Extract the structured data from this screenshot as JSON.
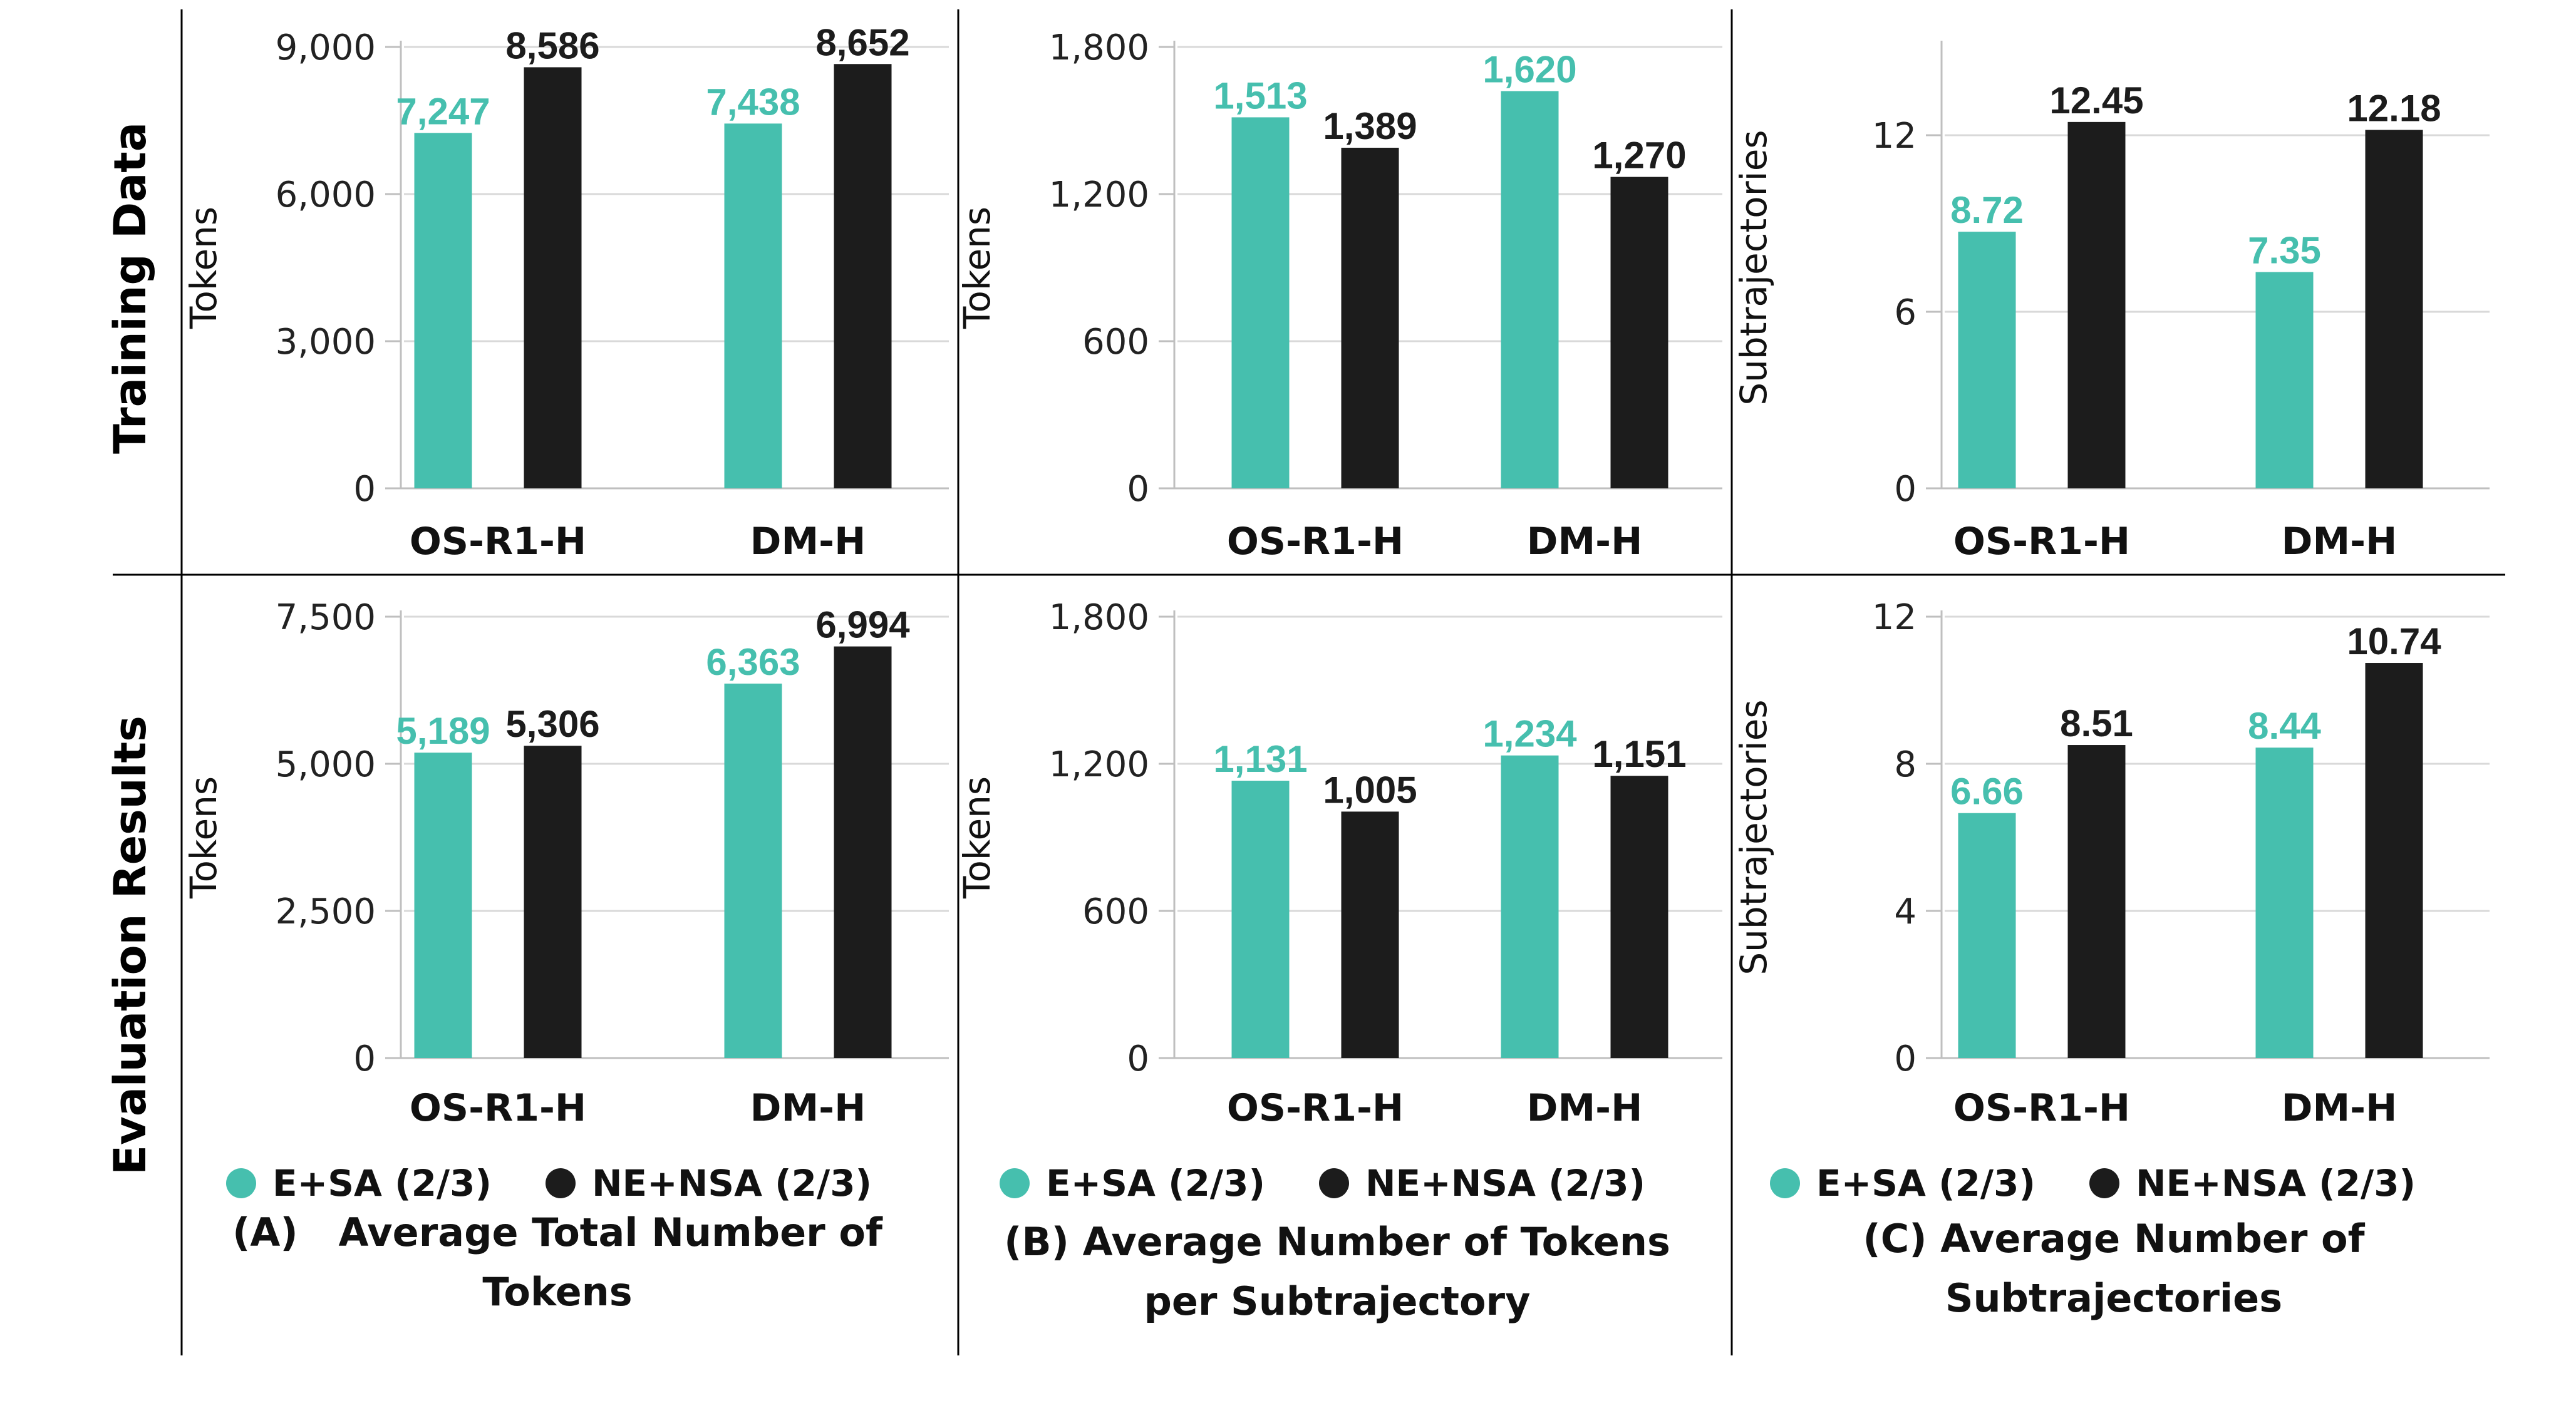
{
  "colors": {
    "esa": "#46bfae",
    "nensa": "#1c1c1c",
    "grid": "#d9d9d9",
    "axis": "#bfbfbf",
    "frame": "#000000"
  },
  "row_labels": [
    "Training Data",
    "Evaluation Results"
  ],
  "legend": {
    "esa": "E+SA (2/3)",
    "nensa": "NE+NSA (2/3)"
  },
  "captions": [
    [
      "(A)   Average Total Number of",
      "Tokens"
    ],
    [
      "(B) Average Number of Tokens",
      "per Subtrajectory"
    ],
    [
      "(C) Average Number of",
      "Subtrajectories"
    ]
  ],
  "chart_data": [
    {
      "type": "bar",
      "row": 0,
      "col": 0,
      "ylabel": "Tokens",
      "ylim": [
        0,
        9000
      ],
      "ticks": [
        "0",
        "3,000",
        "6,000",
        "9,000"
      ],
      "tick_values": [
        0,
        3000,
        6000,
        9000
      ],
      "categories": [
        "OS-R1-H",
        "DM-H"
      ],
      "series": [
        {
          "name": "E+SA (2/3)",
          "values": [
            7247,
            7438
          ],
          "labels": [
            "7,247",
            "7,438"
          ]
        },
        {
          "name": "NE+NSA (2/3)",
          "values": [
            8586,
            8652
          ],
          "labels": [
            "8,586",
            "8,652"
          ]
        }
      ]
    },
    {
      "type": "bar",
      "row": 0,
      "col": 1,
      "ylabel": "Tokens",
      "ylim": [
        0,
        1800
      ],
      "ticks": [
        "0",
        "600",
        "1,200",
        "1,800"
      ],
      "tick_values": [
        0,
        600,
        1200,
        1800
      ],
      "categories": [
        "OS-R1-H",
        "DM-H"
      ],
      "series": [
        {
          "name": "E+SA (2/3)",
          "values": [
            1513,
            1620
          ],
          "labels": [
            "1,513",
            "1,620"
          ]
        },
        {
          "name": "NE+NSA (2/3)",
          "values": [
            1389,
            1270
          ],
          "labels": [
            "1,389",
            "1,270"
          ]
        }
      ]
    },
    {
      "type": "bar",
      "row": 0,
      "col": 2,
      "ylabel": "Subtrajectories",
      "ylim": [
        0,
        15
      ],
      "ticks": [
        "0",
        "6",
        "12"
      ],
      "tick_values": [
        0,
        6,
        12
      ],
      "categories": [
        "OS-R1-H",
        "DM-H"
      ],
      "series": [
        {
          "name": "E+SA (2/3)",
          "values": [
            8.72,
            7.35
          ],
          "labels": [
            "8.72",
            "7.35"
          ]
        },
        {
          "name": "NE+NSA (2/3)",
          "values": [
            12.45,
            12.18
          ],
          "labels": [
            "12.45",
            "12.18"
          ]
        }
      ]
    },
    {
      "type": "bar",
      "row": 1,
      "col": 0,
      "ylabel": "Tokens",
      "ylim": [
        0,
        7500
      ],
      "ticks": [
        "0",
        "2,500",
        "5,000",
        "7,500"
      ],
      "tick_values": [
        0,
        2500,
        5000,
        7500
      ],
      "categories": [
        "OS-R1-H",
        "DM-H"
      ],
      "series": [
        {
          "name": "E+SA (2/3)",
          "values": [
            5189,
            6363
          ],
          "labels": [
            "5,189",
            "6,363"
          ]
        },
        {
          "name": "NE+NSA (2/3)",
          "values": [
            5306,
            6994
          ],
          "labels": [
            "5,306",
            "6,994"
          ]
        }
      ]
    },
    {
      "type": "bar",
      "row": 1,
      "col": 1,
      "ylabel": "Tokens",
      "ylim": [
        0,
        1800
      ],
      "ticks": [
        "0",
        "600",
        "1,200",
        "1,800"
      ],
      "tick_values": [
        0,
        600,
        1200,
        1800
      ],
      "categories": [
        "OS-R1-H",
        "DM-H"
      ],
      "series": [
        {
          "name": "E+SA (2/3)",
          "values": [
            1131,
            1234
          ],
          "labels": [
            "1,131",
            "1,234"
          ]
        },
        {
          "name": "NE+NSA (2/3)",
          "values": [
            1005,
            1151
          ],
          "labels": [
            "1,005",
            "1,151"
          ]
        }
      ]
    },
    {
      "type": "bar",
      "row": 1,
      "col": 2,
      "ylabel": "Subtrajectories",
      "ylim": [
        0,
        12
      ],
      "ticks": [
        "0",
        "4",
        "8",
        "12"
      ],
      "tick_values": [
        0,
        4,
        8,
        12
      ],
      "categories": [
        "OS-R1-H",
        "DM-H"
      ],
      "series": [
        {
          "name": "E+SA (2/3)",
          "values": [
            6.66,
            8.44
          ],
          "labels": [
            "6.66",
            "8.44"
          ]
        },
        {
          "name": "NE+NSA (2/3)",
          "values": [
            8.51,
            10.74
          ],
          "labels": [
            "8.51",
            "10.74"
          ]
        }
      ]
    }
  ]
}
